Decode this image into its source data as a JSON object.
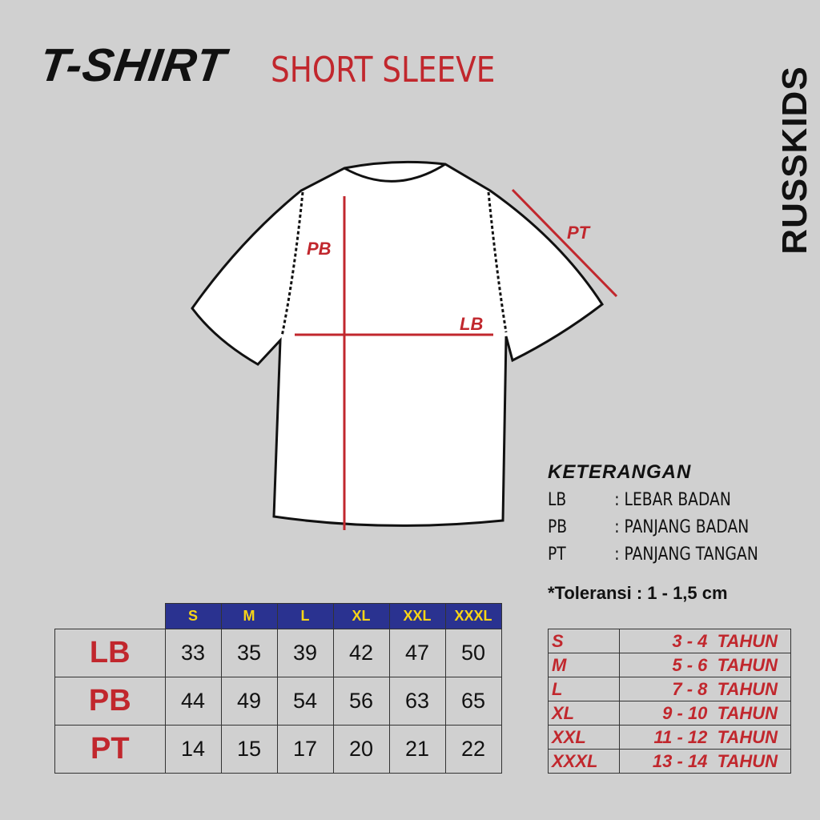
{
  "header": {
    "title": "T-SHIRT",
    "subtitle": "SHORT SLEEVE"
  },
  "logo": {
    "text": "RUSSKIDS"
  },
  "diagram": {
    "labels": {
      "pb": "PB",
      "lb": "LB",
      "pt": "PT"
    },
    "measure_color": "#c1272d"
  },
  "legend": {
    "title": "KETERANGAN",
    "items": [
      {
        "code": "LB",
        "desc": ": LEBAR BADAN"
      },
      {
        "code": "PB",
        "desc": ": PANJANG BADAN"
      },
      {
        "code": "PT",
        "desc": ": PANJANG TANGAN"
      }
    ],
    "tolerance": "*Toleransi : 1 - 1,5 cm"
  },
  "size_table": {
    "sizes": [
      "S",
      "M",
      "L",
      "XL",
      "XXL",
      "XXXL"
    ],
    "rows": [
      {
        "label": "LB",
        "values": [
          "33",
          "35",
          "39",
          "42",
          "47",
          "50"
        ]
      },
      {
        "label": "PB",
        "values": [
          "44",
          "49",
          "54",
          "56",
          "63",
          "65"
        ]
      },
      {
        "label": "PT",
        "values": [
          "14",
          "15",
          "17",
          "20",
          "21",
          "22"
        ]
      }
    ],
    "header_color": "#2a3290",
    "header_text_color": "#f7d417"
  },
  "age_table": [
    {
      "size": "S",
      "age": "3 - 4  TAHUN"
    },
    {
      "size": "M",
      "age": "5 - 6  TAHUN"
    },
    {
      "size": "L",
      "age": "7 - 8  TAHUN"
    },
    {
      "size": "XL",
      "age": "9 - 10  TAHUN"
    },
    {
      "size": "XXL",
      "age": "11 - 12  TAHUN"
    },
    {
      "size": "XXXL",
      "age": "13 - 14  TAHUN"
    }
  ]
}
